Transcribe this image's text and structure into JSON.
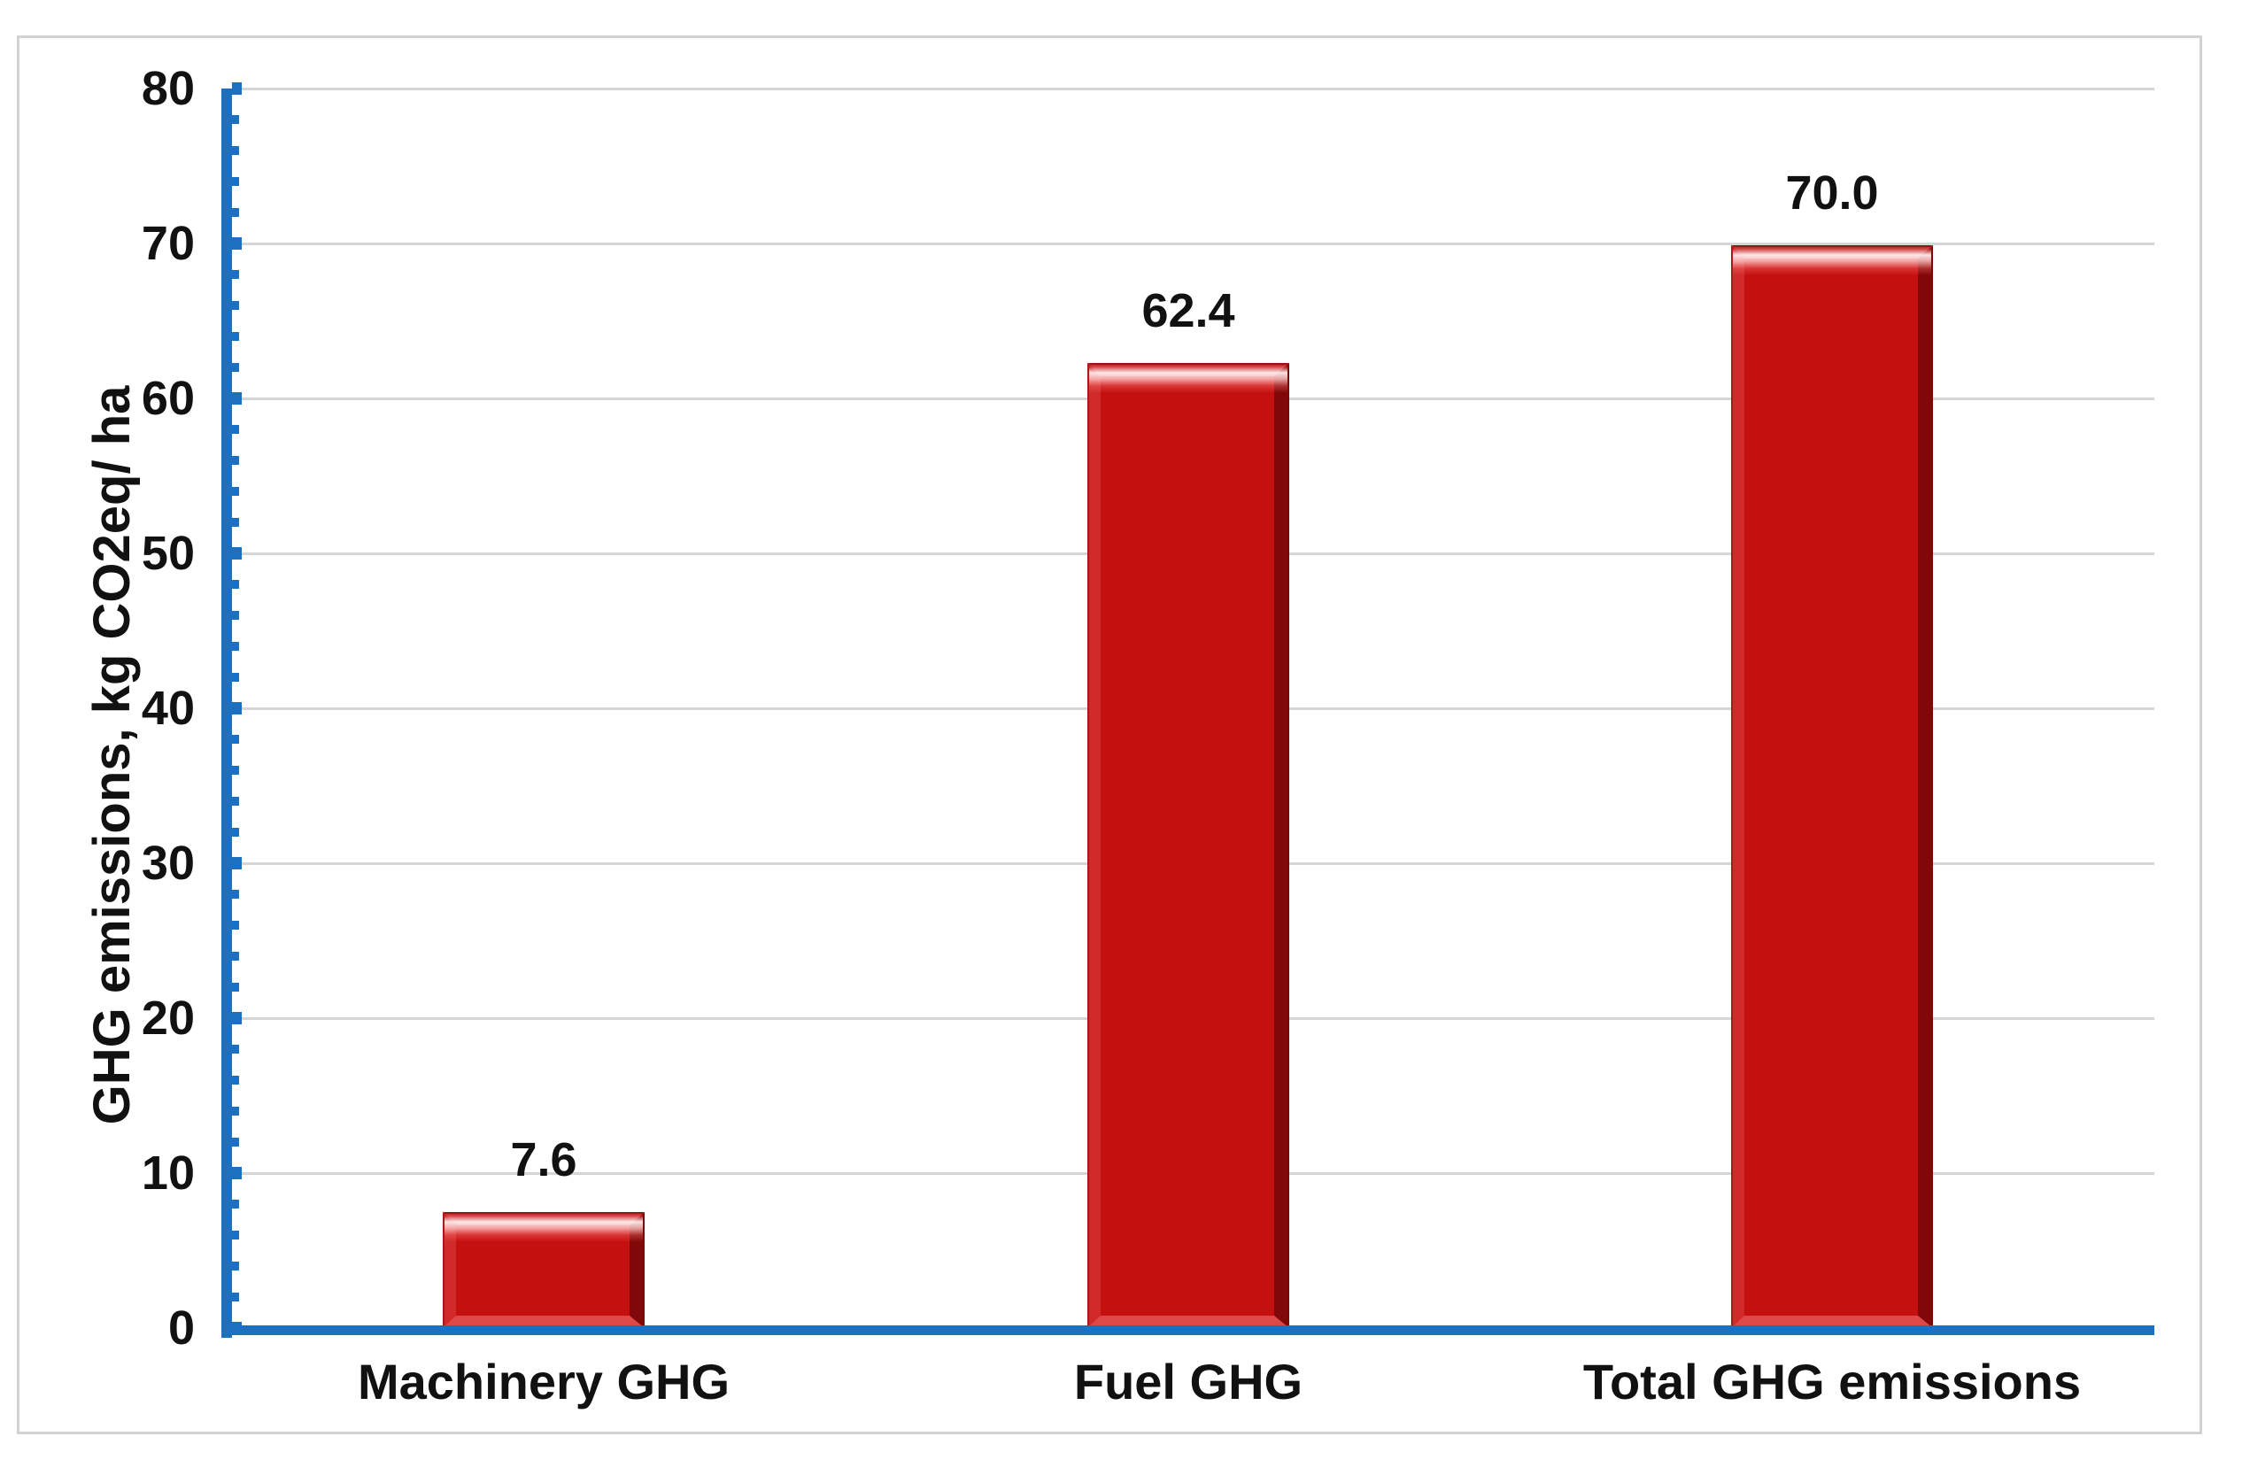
{
  "chart_data": {
    "type": "bar",
    "title": "",
    "categories": [
      "Machinery GHG",
      "Fuel GHG",
      "Total GHG emissions"
    ],
    "values": [
      7.6,
      62.4,
      70.0
    ],
    "data_labels": [
      "7.6",
      "62.4",
      "70.0"
    ],
    "xlabel": "",
    "ylabel": "GHG emissions, kg CO2eq/ ha",
    "ylim": [
      0,
      80
    ],
    "y_major_tick": 10,
    "y_minor_tick": 2,
    "y_tick_labels": [
      "0",
      "10",
      "20",
      "30",
      "40",
      "50",
      "60",
      "70",
      "80"
    ],
    "grid": "horizontal-major-only",
    "legend": "none",
    "bar_color": "#c51010",
    "axis_color": "#1d6fc0",
    "gridline_color": "#d6d6d6",
    "text_color": "#111111"
  }
}
